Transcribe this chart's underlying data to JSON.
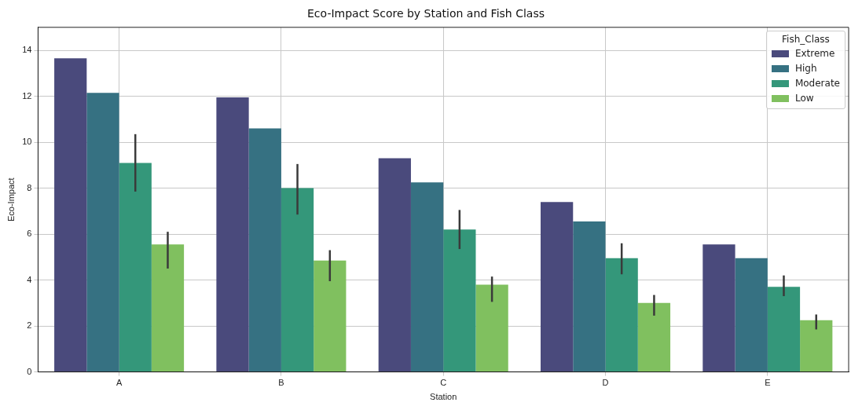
{
  "chart_data": {
    "type": "bar",
    "title": "Eco-Impact Score by Station and Fish Class",
    "xlabel": "Station",
    "ylabel": "Eco-Impact",
    "legend_title": "Fish_Class",
    "categories": [
      "A",
      "B",
      "C",
      "D",
      "E"
    ],
    "series": [
      {
        "name": "Extreme",
        "color": "#4a4a7c",
        "values": [
          13.65,
          11.95,
          9.3,
          7.4,
          5.55
        ]
      },
      {
        "name": "High",
        "color": "#367182",
        "values": [
          12.15,
          10.6,
          8.25,
          6.55,
          4.95
        ]
      },
      {
        "name": "Moderate",
        "color": "#34977a",
        "values": [
          9.1,
          8.0,
          6.2,
          4.95,
          3.7
        ],
        "errors": [
          [
            7.85,
            10.35
          ],
          [
            6.85,
            9.05
          ],
          [
            5.35,
            7.05
          ],
          [
            4.25,
            5.6
          ],
          [
            3.3,
            4.2
          ]
        ]
      },
      {
        "name": "Low",
        "color": "#80c05f",
        "values": [
          5.55,
          4.85,
          3.8,
          3.0,
          2.25
        ],
        "errors": [
          [
            4.5,
            6.1
          ],
          [
            3.95,
            5.3
          ],
          [
            3.05,
            4.15
          ],
          [
            2.45,
            3.35
          ],
          [
            1.85,
            2.5
          ]
        ]
      }
    ],
    "ylim": [
      0,
      15
    ],
    "yticks": [
      0,
      2,
      4,
      6,
      8,
      10,
      12,
      14
    ],
    "grid": true,
    "legend": "top right"
  }
}
